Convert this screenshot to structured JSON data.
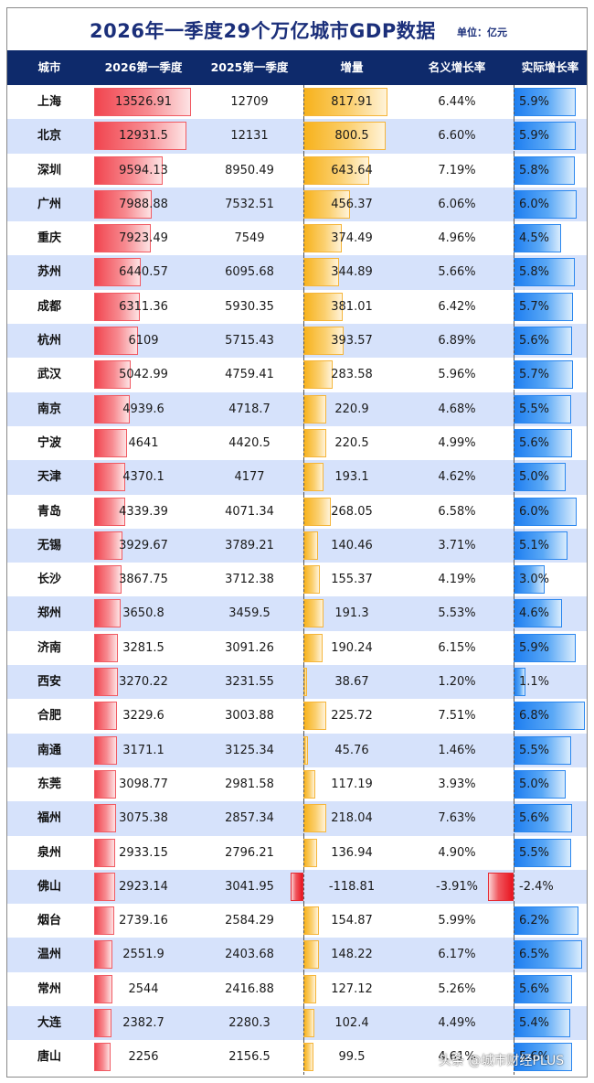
{
  "title": "2026年一季度29个万亿城市GDP数据",
  "unit": "单位：亿元",
  "columns": [
    "城市",
    "2026第一季度",
    "2025第一季度",
    "增量",
    "名义增长率",
    "实际增长率"
  ],
  "colors": {
    "header_bg": "#0e2a6b",
    "title": "#1b2f7a",
    "row_alt": "#d6e2fb",
    "gdp_bar": "#f1454f",
    "increase_bar": "#f7b21c",
    "real_growth_bar": "#1e7ef0",
    "negative_bar": "#e8141f"
  },
  "rows": [
    {
      "city": "上海",
      "q1_2026": "13526.91",
      "q1_2025": "12709",
      "increase": "817.91",
      "nominal": "6.44%",
      "real": "5.9%"
    },
    {
      "city": "北京",
      "q1_2026": "12931.5",
      "q1_2025": "12131",
      "increase": "800.5",
      "nominal": "6.60%",
      "real": "5.9%"
    },
    {
      "city": "深圳",
      "q1_2026": "9594.13",
      "q1_2025": "8950.49",
      "increase": "643.64",
      "nominal": "7.19%",
      "real": "5.8%"
    },
    {
      "city": "广州",
      "q1_2026": "7988.88",
      "q1_2025": "7532.51",
      "increase": "456.37",
      "nominal": "6.06%",
      "real": "6.0%"
    },
    {
      "city": "重庆",
      "q1_2026": "7923.49",
      "q1_2025": "7549",
      "increase": "374.49",
      "nominal": "4.96%",
      "real": "4.5%"
    },
    {
      "city": "苏州",
      "q1_2026": "6440.57",
      "q1_2025": "6095.68",
      "increase": "344.89",
      "nominal": "5.66%",
      "real": "5.8%"
    },
    {
      "city": "成都",
      "q1_2026": "6311.36",
      "q1_2025": "5930.35",
      "increase": "381.01",
      "nominal": "6.42%",
      "real": "5.7%"
    },
    {
      "city": "杭州",
      "q1_2026": "6109",
      "q1_2025": "5715.43",
      "increase": "393.57",
      "nominal": "6.89%",
      "real": "5.6%"
    },
    {
      "city": "武汉",
      "q1_2026": "5042.99",
      "q1_2025": "4759.41",
      "increase": "283.58",
      "nominal": "5.96%",
      "real": "5.7%"
    },
    {
      "city": "南京",
      "q1_2026": "4939.6",
      "q1_2025": "4718.7",
      "increase": "220.9",
      "nominal": "4.68%",
      "real": "5.5%"
    },
    {
      "city": "宁波",
      "q1_2026": "4641",
      "q1_2025": "4420.5",
      "increase": "220.5",
      "nominal": "4.99%",
      "real": "5.6%"
    },
    {
      "city": "天津",
      "q1_2026": "4370.1",
      "q1_2025": "4177",
      "increase": "193.1",
      "nominal": "4.62%",
      "real": "5.0%"
    },
    {
      "city": "青岛",
      "q1_2026": "4339.39",
      "q1_2025": "4071.34",
      "increase": "268.05",
      "nominal": "6.58%",
      "real": "6.0%"
    },
    {
      "city": "无锡",
      "q1_2026": "3929.67",
      "q1_2025": "3789.21",
      "increase": "140.46",
      "nominal": "3.71%",
      "real": "5.1%"
    },
    {
      "city": "长沙",
      "q1_2026": "3867.75",
      "q1_2025": "3712.38",
      "increase": "155.37",
      "nominal": "4.19%",
      "real": "3.0%"
    },
    {
      "city": "郑州",
      "q1_2026": "3650.8",
      "q1_2025": "3459.5",
      "increase": "191.3",
      "nominal": "5.53%",
      "real": "4.6%"
    },
    {
      "city": "济南",
      "q1_2026": "3281.5",
      "q1_2025": "3091.26",
      "increase": "190.24",
      "nominal": "6.15%",
      "real": "5.9%"
    },
    {
      "city": "西安",
      "q1_2026": "3270.22",
      "q1_2025": "3231.55",
      "increase": "38.67",
      "nominal": "1.20%",
      "real": "1.1%"
    },
    {
      "city": "合肥",
      "q1_2026": "3229.6",
      "q1_2025": "3003.88",
      "increase": "225.72",
      "nominal": "7.51%",
      "real": "6.8%"
    },
    {
      "city": "南通",
      "q1_2026": "3171.1",
      "q1_2025": "3125.34",
      "increase": "45.76",
      "nominal": "1.46%",
      "real": "5.5%"
    },
    {
      "city": "东莞",
      "q1_2026": "3098.77",
      "q1_2025": "2981.58",
      "increase": "117.19",
      "nominal": "3.93%",
      "real": "5.0%"
    },
    {
      "city": "福州",
      "q1_2026": "3075.38",
      "q1_2025": "2857.34",
      "increase": "218.04",
      "nominal": "7.63%",
      "real": "5.6%"
    },
    {
      "city": "泉州",
      "q1_2026": "2933.15",
      "q1_2025": "2796.21",
      "increase": "136.94",
      "nominal": "4.90%",
      "real": "5.5%"
    },
    {
      "city": "佛山",
      "q1_2026": "2923.14",
      "q1_2025": "3041.95",
      "increase": "-118.81",
      "nominal": "-3.91%",
      "real": "-2.4%"
    },
    {
      "city": "烟台",
      "q1_2026": "2739.16",
      "q1_2025": "2584.29",
      "increase": "154.87",
      "nominal": "5.99%",
      "real": "6.2%"
    },
    {
      "city": "温州",
      "q1_2026": "2551.9",
      "q1_2025": "2403.68",
      "increase": "148.22",
      "nominal": "6.17%",
      "real": "6.5%"
    },
    {
      "city": "常州",
      "q1_2026": "2544",
      "q1_2025": "2416.88",
      "increase": "127.12",
      "nominal": "5.26%",
      "real": "5.6%"
    },
    {
      "city": "大连",
      "q1_2026": "2382.7",
      "q1_2025": "2280.3",
      "increase": "102.4",
      "nominal": "4.49%",
      "real": "5.4%"
    },
    {
      "city": "唐山",
      "q1_2026": "2256",
      "q1_2025": "2156.5",
      "increase": "99.5",
      "nominal": "4.61%",
      "real": "5.6%"
    }
  ],
  "watermark": "头条 @城市财经PLUS"
}
